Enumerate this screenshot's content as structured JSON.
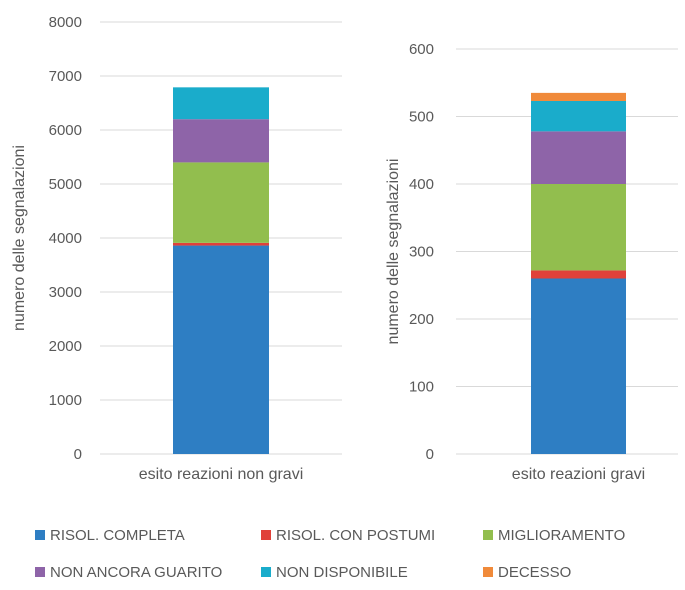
{
  "chart_data": [
    {
      "type": "bar",
      "stacked": true,
      "categories": [
        "esito reazioni non gravi"
      ],
      "ylabel": "numero delle segnalazioni",
      "ylim": [
        0,
        8000
      ],
      "yticks": [
        0,
        1000,
        2000,
        3000,
        4000,
        5000,
        6000,
        7000,
        8000
      ],
      "grid": true,
      "series": [
        {
          "name": "RISOL. COMPLETA",
          "values": [
            3860
          ]
        },
        {
          "name": "RISOL. CON POSTUMI",
          "values": [
            50
          ]
        },
        {
          "name": "MIGLIORAMENTO",
          "values": [
            1490
          ]
        },
        {
          "name": "NON ANCORA GUARITO",
          "values": [
            800
          ]
        },
        {
          "name": "NON DISPONIBILE",
          "values": [
            590
          ]
        },
        {
          "name": "DECESSO",
          "values": [
            0
          ]
        }
      ]
    },
    {
      "type": "bar",
      "stacked": true,
      "categories": [
        "esito reazioni gravi"
      ],
      "ylabel": "numero delle segnalazioni",
      "ylim": [
        0,
        600
      ],
      "yticks": [
        0,
        100,
        200,
        300,
        400,
        500,
        600
      ],
      "grid": true,
      "series": [
        {
          "name": "RISOL. COMPLETA",
          "values": [
            260
          ]
        },
        {
          "name": "RISOL. CON POSTUMI",
          "values": [
            12
          ]
        },
        {
          "name": "MIGLIORAMENTO",
          "values": [
            128
          ]
        },
        {
          "name": "NON ANCORA GUARITO",
          "values": [
            78
          ]
        },
        {
          "name": "NON DISPONIBILE",
          "values": [
            45
          ]
        },
        {
          "name": "DECESSO",
          "values": [
            12
          ]
        }
      ]
    }
  ],
  "legend": {
    "placement": "bottom",
    "items": [
      {
        "label": "RISOL. COMPLETA",
        "color": "#2E7EC3"
      },
      {
        "label": "RISOL. CON POSTUMI",
        "color": "#E0413A"
      },
      {
        "label": "MIGLIORAMENTO",
        "color": "#92BE4E"
      },
      {
        "label": "NON ANCORA GUARITO",
        "color": "#8E64A8"
      },
      {
        "label": "NON DISPONIBILE",
        "color": "#1AACCB"
      },
      {
        "label": "DECESSO",
        "color": "#F08A3A"
      }
    ]
  }
}
